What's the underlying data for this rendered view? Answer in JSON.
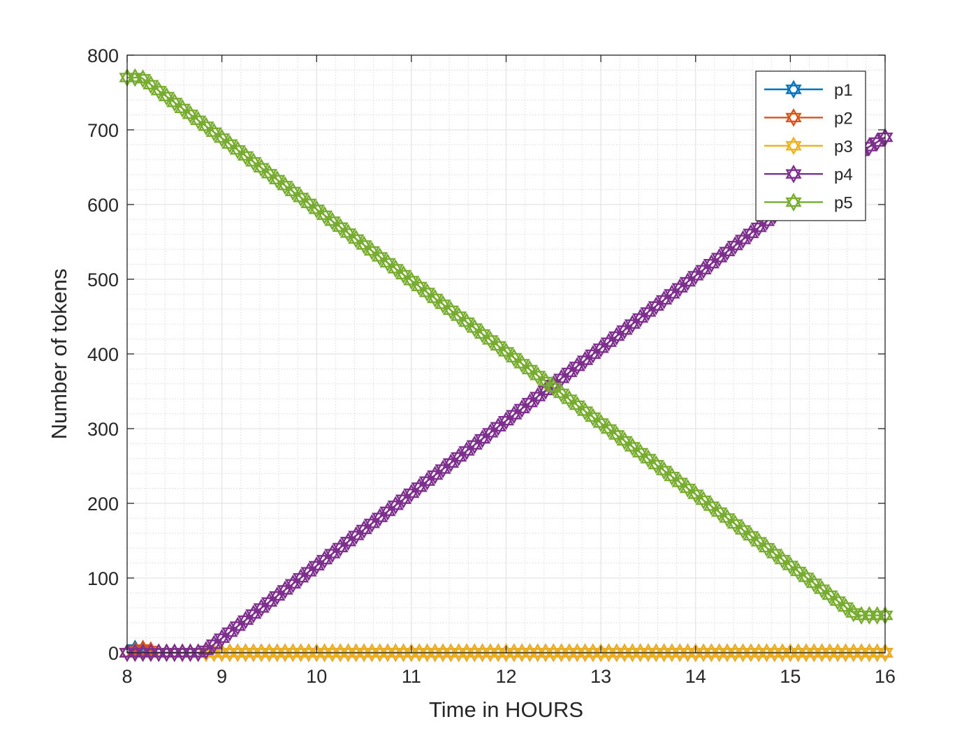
{
  "chart_data": {
    "type": "line",
    "title": "",
    "xlabel": "Time in HOURS",
    "ylabel": "Number of tokens",
    "xlim": [
      8,
      16
    ],
    "ylim": [
      0,
      800
    ],
    "xticks": [
      8,
      9,
      10,
      11,
      12,
      13,
      14,
      15,
      16
    ],
    "yticks": [
      0,
      100,
      200,
      300,
      400,
      500,
      600,
      700,
      800
    ],
    "grid": true,
    "minor_grid": true,
    "legend_position": "top-right",
    "marker": "hexagram",
    "series": [
      {
        "name": "p1",
        "color": "#0072BD",
        "x": [
          8,
          8.1,
          8.2,
          16
        ],
        "y": [
          0,
          6,
          0,
          0
        ]
      },
      {
        "name": "p2",
        "color": "#D95319",
        "x": [
          8,
          8.2,
          8.3,
          16
        ],
        "y": [
          0,
          6,
          0,
          0
        ]
      },
      {
        "name": "p3",
        "color": "#EDB120",
        "x": [
          8,
          8.1,
          16
        ],
        "y": [
          0,
          0,
          0
        ]
      },
      {
        "name": "p4",
        "color": "#7E2F8E",
        "x": [
          8,
          8.8,
          15.6,
          16
        ],
        "y": [
          0,
          0,
          660,
          690
        ]
      },
      {
        "name": "p5",
        "color": "#77AC30",
        "x": [
          8,
          8.15,
          15.7,
          16
        ],
        "y": [
          770,
          770,
          50,
          50
        ]
      }
    ]
  }
}
